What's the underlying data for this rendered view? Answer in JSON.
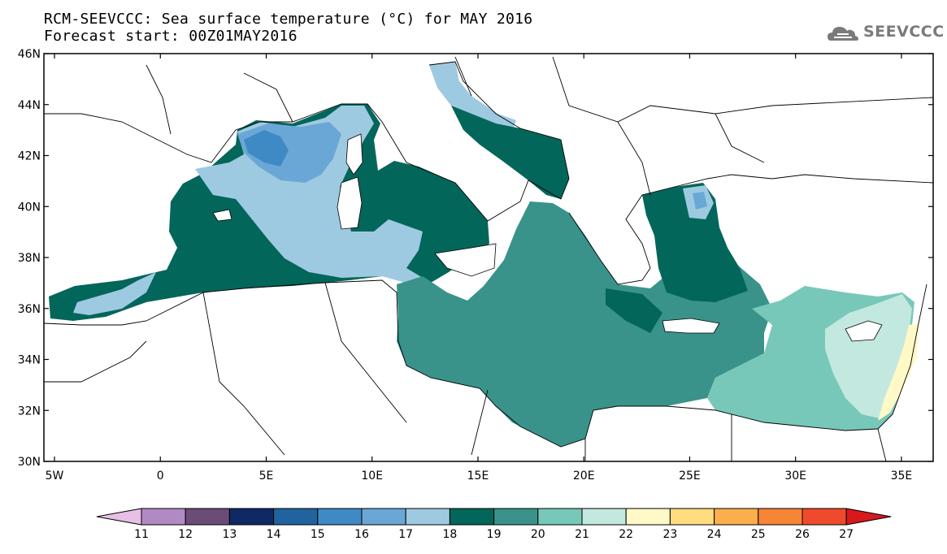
{
  "title": {
    "line1": "RCM-SEEVCCC: Sea surface temperature (°C) for MAY 2016",
    "line2": "Forecast start: 00Z01MAY2016"
  },
  "logo": {
    "text": "SEEVCCC",
    "icon": "cloud-icon",
    "color": "#7a7a7a"
  },
  "map": {
    "region": "Mediterranean",
    "lat_labels": [
      "46N",
      "44N",
      "42N",
      "40N",
      "38N",
      "36N",
      "34N",
      "32N",
      "30N"
    ],
    "lat_values": [
      46,
      44,
      42,
      40,
      38,
      36,
      34,
      32,
      30
    ],
    "lon_labels": [
      "5W",
      "0",
      "5E",
      "10E",
      "15E",
      "20E",
      "25E",
      "30E",
      "35E"
    ],
    "lon_values": [
      -5,
      0,
      5,
      10,
      15,
      20,
      25,
      30,
      35
    ],
    "lon_range": [
      -5.5,
      36.5
    ],
    "lat_range": [
      30,
      46
    ],
    "land_color": "#ffffff",
    "border_color": "#000000"
  },
  "colorbar": {
    "labels": [
      "11",
      "12",
      "13",
      "14",
      "15",
      "16",
      "17",
      "18",
      "19",
      "20",
      "21",
      "22",
      "23",
      "24",
      "25",
      "26",
      "27"
    ],
    "colors": [
      "#e8bfe6",
      "#b28ac3",
      "#6b4c77",
      "#0f2a63",
      "#20639e",
      "#3f8ac4",
      "#6ba7d6",
      "#9ecae1",
      "#03665a",
      "#39938a",
      "#78c8ba",
      "#c3e8df",
      "#fff9c8",
      "#fedc7f",
      "#fbae4b",
      "#f78536",
      "#ef4a2c",
      "#d7191c"
    ]
  }
}
